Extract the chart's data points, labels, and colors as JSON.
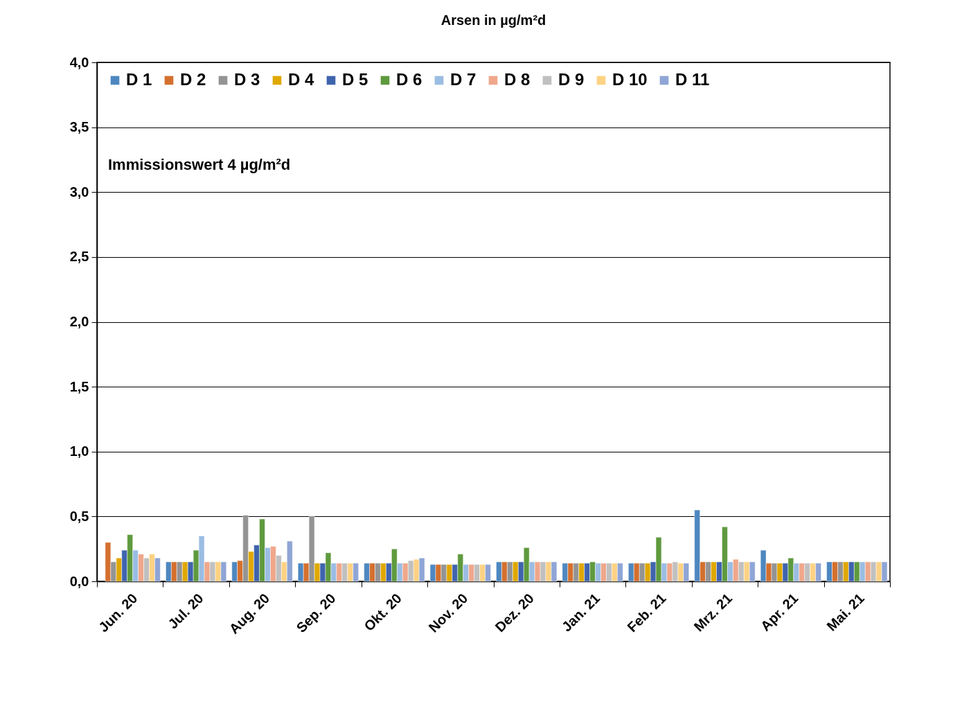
{
  "chart_data": {
    "type": "bar",
    "title": "Arsen in µg/m²d",
    "categories": [
      "Jun. 20",
      "Jul. 20",
      "Aug. 20",
      "Sep. 20",
      "Okt. 20",
      "Nov. 20",
      "Dez. 20",
      "Jan. 21",
      "Feb. 21",
      "Mrz. 21",
      "Apr. 21",
      "Mai. 21"
    ],
    "series": [
      {
        "name": "D 1",
        "color": "#4e87c0",
        "values": [
          null,
          0.15,
          0.15,
          0.14,
          0.14,
          0.13,
          0.15,
          0.14,
          0.14,
          0.55,
          0.24,
          0.15
        ]
      },
      {
        "name": "D 2",
        "color": "#d4702e",
        "values": [
          0.3,
          0.15,
          0.16,
          0.14,
          0.14,
          0.13,
          0.15,
          0.14,
          0.14,
          0.15,
          0.14,
          0.15
        ]
      },
      {
        "name": "D 3",
        "color": "#949494",
        "values": [
          0.15,
          0.15,
          0.51,
          0.5,
          0.14,
          0.13,
          0.15,
          0.14,
          0.14,
          0.15,
          0.14,
          0.15
        ]
      },
      {
        "name": "D 4",
        "color": "#e0a800",
        "values": [
          0.18,
          0.15,
          0.23,
          0.14,
          0.14,
          0.13,
          0.15,
          0.14,
          0.14,
          0.15,
          0.14,
          0.15
        ]
      },
      {
        "name": "D 5",
        "color": "#3f64ae",
        "values": [
          0.24,
          0.15,
          0.28,
          0.14,
          0.14,
          0.13,
          0.15,
          0.14,
          0.15,
          0.15,
          0.14,
          0.15
        ]
      },
      {
        "name": "D 6",
        "color": "#5f9a3e",
        "values": [
          0.36,
          0.24,
          0.48,
          0.22,
          0.25,
          0.21,
          0.26,
          0.15,
          0.34,
          0.42,
          0.18,
          0.15
        ]
      },
      {
        "name": "D 7",
        "color": "#9bbde3",
        "values": [
          0.24,
          0.35,
          0.26,
          0.14,
          0.14,
          0.13,
          0.15,
          0.14,
          0.14,
          0.15,
          0.14,
          0.15
        ]
      },
      {
        "name": "D 8",
        "color": "#f0a78b",
        "values": [
          0.21,
          0.15,
          0.27,
          0.14,
          0.14,
          0.13,
          0.15,
          0.14,
          0.14,
          0.17,
          0.14,
          0.15
        ]
      },
      {
        "name": "D 9",
        "color": "#c0c0c0",
        "values": [
          0.18,
          0.15,
          0.2,
          0.14,
          0.16,
          0.13,
          0.15,
          0.14,
          0.15,
          0.15,
          0.14,
          0.15
        ]
      },
      {
        "name": "D 10",
        "color": "#fed283",
        "values": [
          0.21,
          0.15,
          0.15,
          0.14,
          0.17,
          0.13,
          0.15,
          0.14,
          0.14,
          0.15,
          0.14,
          0.15
        ]
      },
      {
        "name": "D 11",
        "color": "#8fa5d6",
        "values": [
          0.18,
          0.15,
          0.31,
          0.14,
          0.18,
          0.13,
          0.15,
          0.14,
          0.14,
          0.15,
          0.14,
          0.15
        ]
      }
    ],
    "ylim": [
      0,
      4
    ],
    "yticks": [
      {
        "value": 0,
        "label": "0,0"
      },
      {
        "value": 0.5,
        "label": "0,5"
      },
      {
        "value": 1,
        "label": "1,0"
      },
      {
        "value": 1.5,
        "label": "1,5"
      },
      {
        "value": 2,
        "label": "2,0"
      },
      {
        "value": 2.5,
        "label": "2,5"
      },
      {
        "value": 3,
        "label": "3,0"
      },
      {
        "value": 3.5,
        "label": "3,5"
      },
      {
        "value": 4,
        "label": "4,0"
      }
    ],
    "grid": "y",
    "legend": "top left",
    "annotations": [
      "Immissionswert 4 µg/m²d"
    ]
  }
}
